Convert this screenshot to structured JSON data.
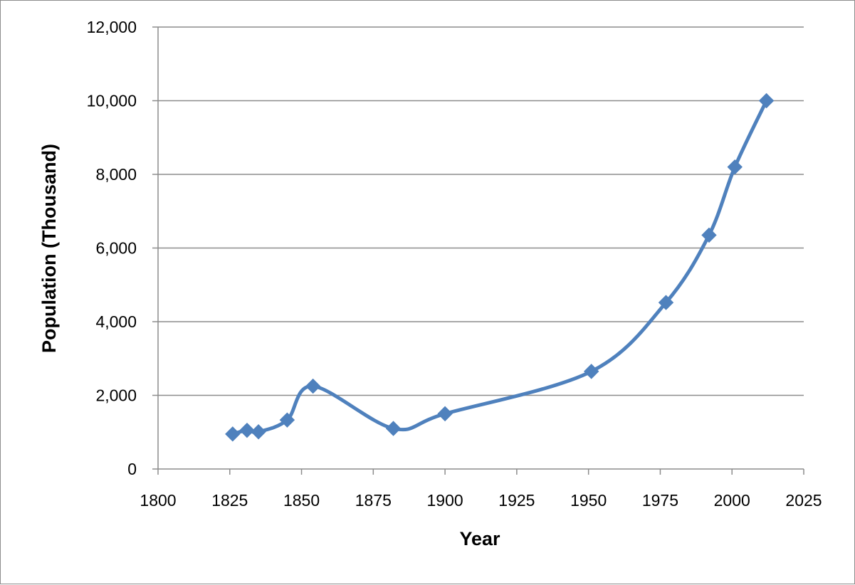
{
  "chart_data": {
    "type": "line",
    "title": "",
    "xlabel": "Year",
    "ylabel": "Population (Thousand)",
    "xlim": [
      1800,
      2025
    ],
    "ylim": [
      0,
      12000
    ],
    "x_ticks": [
      1800,
      1825,
      1850,
      1875,
      1900,
      1925,
      1950,
      1975,
      2000,
      2025
    ],
    "y_ticks": [
      0,
      2000,
      4000,
      6000,
      8000,
      10000,
      12000
    ],
    "x_tick_labels": [
      "1800",
      "1825",
      "1850",
      "1875",
      "1900",
      "1925",
      "1950",
      "1975",
      "2000",
      "2025"
    ],
    "y_tick_labels": [
      "0",
      "2,000",
      "4,000",
      "6,000",
      "8,000",
      "10,000",
      "12,000"
    ],
    "grid": true,
    "legend": "none",
    "marker": "diamond",
    "smooth": true,
    "series": [
      {
        "color": "#4f81bd",
        "x": [
          1826,
          1831,
          1835,
          1845,
          1854,
          1882,
          1900,
          1951,
          1977,
          1992,
          2001,
          2012
        ],
        "values": [
          950,
          1050,
          1010,
          1330,
          2250,
          1100,
          1500,
          2650,
          4520,
          6350,
          8200,
          10000
        ]
      }
    ]
  }
}
